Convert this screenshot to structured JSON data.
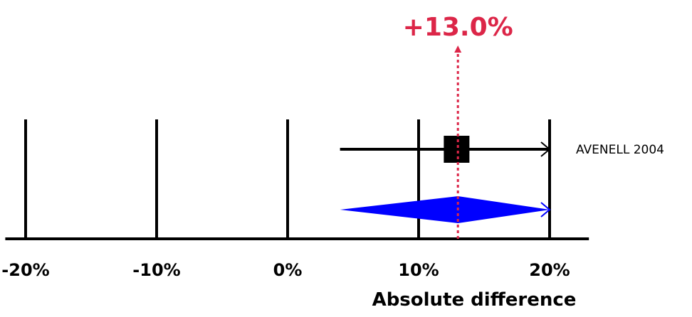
{
  "chart_data": {
    "type": "forest",
    "xlabel": "Absolute difference",
    "x_ticks": [
      -20,
      -10,
      0,
      10,
      20
    ],
    "x_tick_labels": [
      "-20%",
      "-10%",
      "0%",
      "10%",
      "20%"
    ],
    "xlim": [
      -21.5,
      23
    ],
    "studies": [
      {
        "name": "AVENELL 2004",
        "estimate": 12.9,
        "ci_low": 4.0,
        "ci_high": 20,
        "ci_high_truncated": true
      }
    ],
    "pooled": {
      "estimate": 13.0,
      "ci_low": 4.0,
      "ci_high": 20,
      "ci_high_truncated": true,
      "label": "+13.0%"
    },
    "colors": {
      "pooled_diamond": "#0000ff",
      "pooled_label": "#dc2648",
      "reference_line": "#dc2648",
      "axis": "#000000"
    }
  }
}
